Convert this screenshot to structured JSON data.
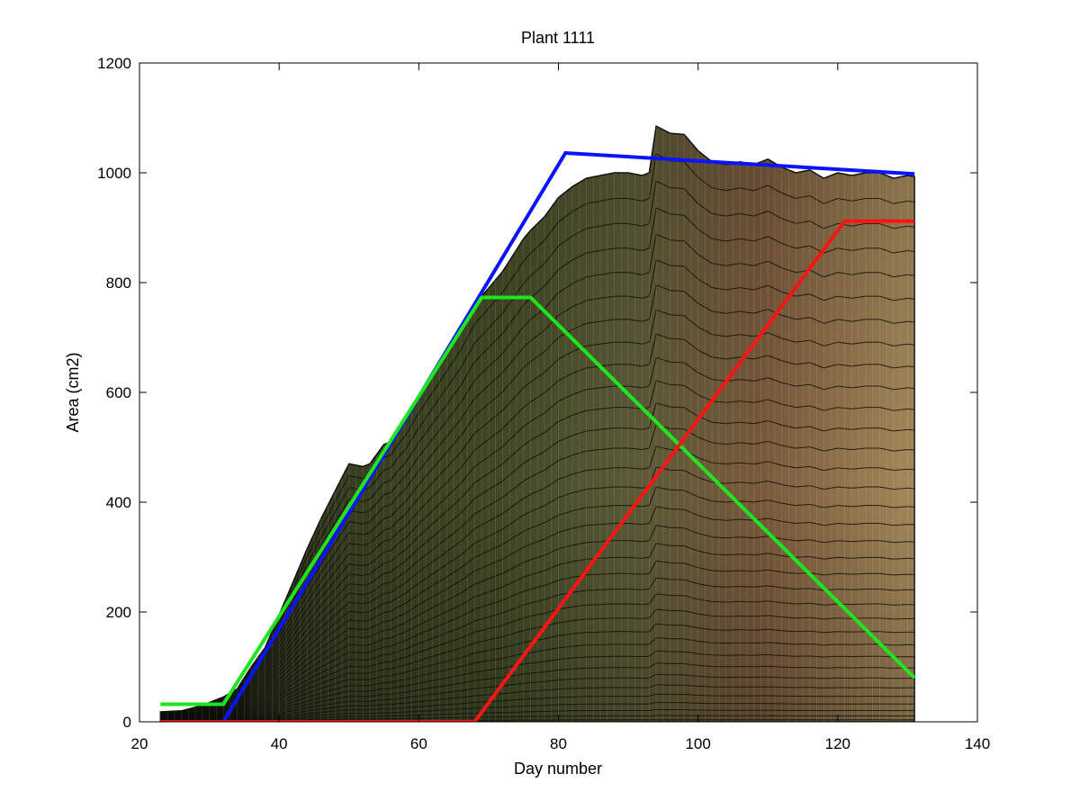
{
  "chart_data": {
    "type": "area",
    "title": "Plant 1111",
    "xlabel": "Day number",
    "ylabel": "Area (cm2)",
    "xlim": [
      20,
      140
    ],
    "ylim": [
      0,
      1200
    ],
    "xticks": [
      "20",
      "40",
      "60",
      "80",
      "100",
      "120",
      "140"
    ],
    "yticks": [
      "0",
      "200",
      "400",
      "600",
      "800",
      "1000",
      "1200"
    ],
    "grid": false,
    "legend": "none",
    "stack_series_count": 34,
    "envelope_profile": {
      "x": [
        23,
        26,
        29,
        32,
        34,
        36,
        38,
        40,
        42,
        44,
        46,
        48,
        50,
        52,
        53,
        55,
        56,
        57,
        58,
        60,
        62,
        64,
        66,
        68,
        70,
        72,
        74,
        75,
        76,
        78,
        80,
        82,
        84,
        86,
        88,
        90,
        92,
        93,
        94,
        96,
        98,
        100,
        102,
        104,
        106,
        108,
        110,
        112,
        114,
        116,
        118,
        120,
        122,
        124,
        126,
        128,
        130,
        131
      ],
      "y": [
        18,
        20,
        30,
        45,
        60,
        100,
        135,
        195,
        255,
        315,
        370,
        420,
        470,
        465,
        470,
        505,
        510,
        530,
        545,
        590,
        630,
        670,
        710,
        760,
        790,
        820,
        860,
        880,
        895,
        920,
        955,
        975,
        990,
        995,
        1000,
        1000,
        995,
        1000,
        1085,
        1072,
        1070,
        1040,
        1020,
        1015,
        1020,
        1015,
        1025,
        1010,
        1000,
        1005,
        990,
        1000,
        995,
        1000,
        1000,
        990,
        995,
        993
      ]
    },
    "series": [
      {
        "x": [
          23,
          32,
          81,
          131
        ],
        "values": [
          0,
          0,
          1036,
          998
        ],
        "color": "#0a14ff"
      },
      {
        "x": [
          23,
          32,
          69,
          76,
          131
        ],
        "values": [
          32,
          32,
          773,
          773,
          80
        ],
        "color": "#1ee61e"
      },
      {
        "x": [
          23,
          68,
          121,
          131
        ],
        "values": [
          0,
          0,
          912,
          912
        ],
        "color": "#ff1414"
      }
    ]
  }
}
